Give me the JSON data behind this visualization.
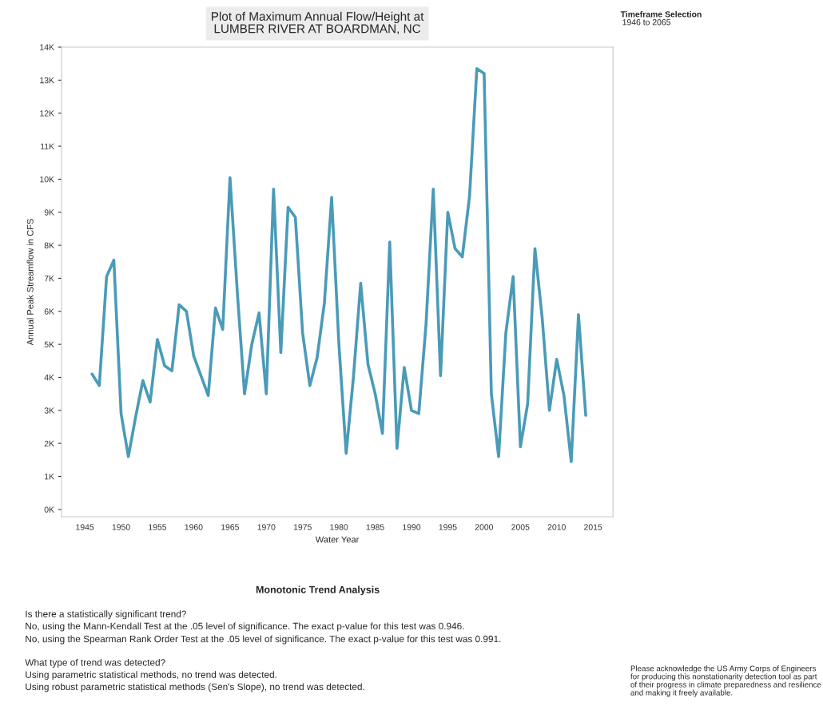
{
  "chart_data": {
    "type": "line",
    "title": "Plot of Maximum Annual Flow/Height at\nLUMBER RIVER AT BOARDMAN, NC",
    "xlabel": "Water Year",
    "ylabel": "Annual Peak Streamflow in CFS",
    "x": [
      1946,
      1947,
      1948,
      1949,
      1950,
      1951,
      1952,
      1953,
      1954,
      1955,
      1956,
      1957,
      1958,
      1959,
      1960,
      1961,
      1962,
      1963,
      1964,
      1965,
      1966,
      1967,
      1968,
      1969,
      1970,
      1971,
      1972,
      1973,
      1974,
      1975,
      1976,
      1977,
      1978,
      1979,
      1980,
      1981,
      1982,
      1983,
      1984,
      1985,
      1986,
      1987,
      1988,
      1989,
      1990,
      1991,
      1992,
      1993,
      1994,
      1995,
      1996,
      1997,
      1998,
      1999,
      2000,
      2001,
      2002,
      2003,
      2004,
      2005,
      2006,
      2007,
      2008,
      2009,
      2010,
      2011,
      2012,
      2013,
      2014
    ],
    "series": [
      {
        "color": "#4a9bb8",
        "values": [
          4100,
          3750,
          7050,
          7550,
          2900,
          1600,
          2800,
          3900,
          3250,
          5150,
          4350,
          4200,
          6200,
          6000,
          4650,
          4050,
          3450,
          6100,
          5450,
          10050,
          6600,
          3500,
          5000,
          5950,
          3500,
          9700,
          4750,
          9150,
          8850,
          5350,
          3750,
          4600,
          6250,
          9450,
          5000,
          1700,
          4000,
          6850,
          4400,
          3500,
          2300,
          8100,
          1850,
          4300,
          3000,
          2900,
          5600,
          9700,
          4050,
          9000,
          7900,
          7650,
          9500,
          13350,
          13200,
          3500,
          1600,
          5350,
          7050,
          1900,
          3200,
          7900,
          5800,
          3000,
          4550,
          3450,
          1450,
          5900,
          2850
        ]
      }
    ],
    "xlim": [
      1941.8,
      2017.75
    ],
    "ylim": [
      -220,
      14000
    ],
    "xticks": [
      1945,
      1950,
      1955,
      1960,
      1965,
      1970,
      1975,
      1980,
      1985,
      1990,
      1995,
      2000,
      2005,
      2010,
      2015
    ],
    "yticks": [
      {
        "value": 0,
        "label": "0K"
      },
      {
        "value": 1000,
        "label": "1K"
      },
      {
        "value": 2000,
        "label": "2K"
      },
      {
        "value": 3000,
        "label": "3K"
      },
      {
        "value": 4000,
        "label": "4K"
      },
      {
        "value": 5000,
        "label": "5K"
      },
      {
        "value": 6000,
        "label": "6K"
      },
      {
        "value": 7000,
        "label": "7K"
      },
      {
        "value": 8000,
        "label": "8K"
      },
      {
        "value": 9000,
        "label": "9K"
      },
      {
        "value": 10000,
        "label": "10K"
      },
      {
        "value": 11000,
        "label": "11K"
      },
      {
        "value": 12000,
        "label": "12K"
      },
      {
        "value": 13000,
        "label": "13K"
      },
      {
        "value": 14000,
        "label": "14K"
      }
    ],
    "grid": false,
    "marker": "none",
    "line_style": "solid",
    "annotations": [
      "Timeframe Selection",
      "1946 to 2065",
      "Monotonic Trend Analysis",
      "Is there a statistically significant trend?",
      "No, using the Mann-Kendall Test at the .05 level of significance. The exact p-value for this test was 0.946.",
      "No, using the Spearman Rank Order Test at the .05 level of significance. The exact p-value for this test was 0.991.",
      "What type of trend was detected?",
      "Using parametric statistical methods, no trend was detected.",
      "Using robust parametric statistical methods (Sen's Slope), no trend was detected.",
      "Please acknowledge the US Army Corps of Engineers for producing this nonstationarity detection tool as part of their progress in climate preparedness and resilience and making it freely available."
    ]
  }
}
